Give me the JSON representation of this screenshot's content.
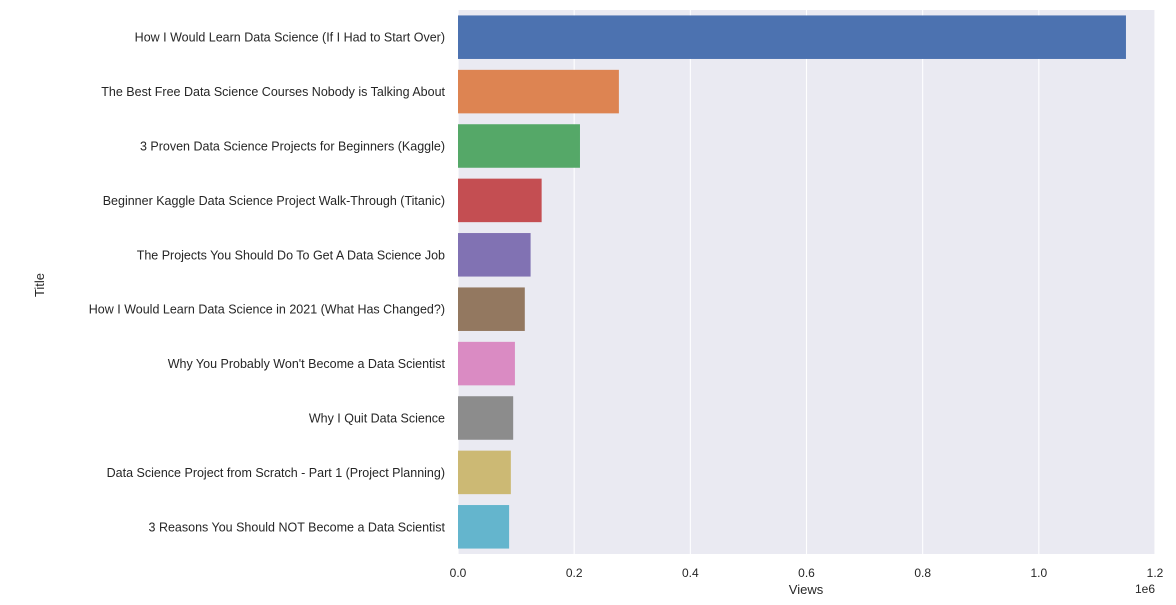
{
  "chart_data": {
    "type": "bar",
    "orientation": "horizontal",
    "title": "",
    "xlabel": "Views",
    "ylabel": "Title",
    "xlim": [
      0,
      1.2
    ],
    "x_scale_offset": "1e6",
    "x_ticks": [
      {
        "value": 0.0,
        "label": "0.0"
      },
      {
        "value": 0.2,
        "label": "0.2"
      },
      {
        "value": 0.4,
        "label": "0.4"
      },
      {
        "value": 0.6,
        "label": "0.6"
      },
      {
        "value": 0.8,
        "label": "0.8"
      },
      {
        "value": 1.0,
        "label": "1.0"
      },
      {
        "value": 1.2,
        "label": "1.2"
      }
    ],
    "grid": true,
    "background": "#eaeaf2",
    "categories": [
      "How I Would Learn Data Science (If I Had to Start Over)",
      "The Best Free Data Science Courses Nobody is Talking About",
      "3 Proven Data Science Projects for Beginners (Kaggle)",
      "Beginner Kaggle Data Science Project Walk-Through (Titanic)",
      "The Projects You Should Do To Get A Data Science Job",
      "How I Would Learn Data Science in 2021 (What Has Changed?)",
      "Why You Probably Won't Become a Data Scientist",
      "Why I Quit Data Science",
      "Data Science Project from Scratch - Part 1 (Project Planning)",
      "3 Reasons You Should NOT Become a Data Scientist"
    ],
    "values": [
      1.15,
      0.277,
      0.21,
      0.144,
      0.125,
      0.115,
      0.098,
      0.095,
      0.091,
      0.088
    ],
    "colors": [
      "#4c72b0",
      "#dd8452",
      "#55a868",
      "#c44e52",
      "#8172b3",
      "#937860",
      "#da8bc3",
      "#8c8c8c",
      "#ccb974",
      "#64b5cd"
    ]
  }
}
